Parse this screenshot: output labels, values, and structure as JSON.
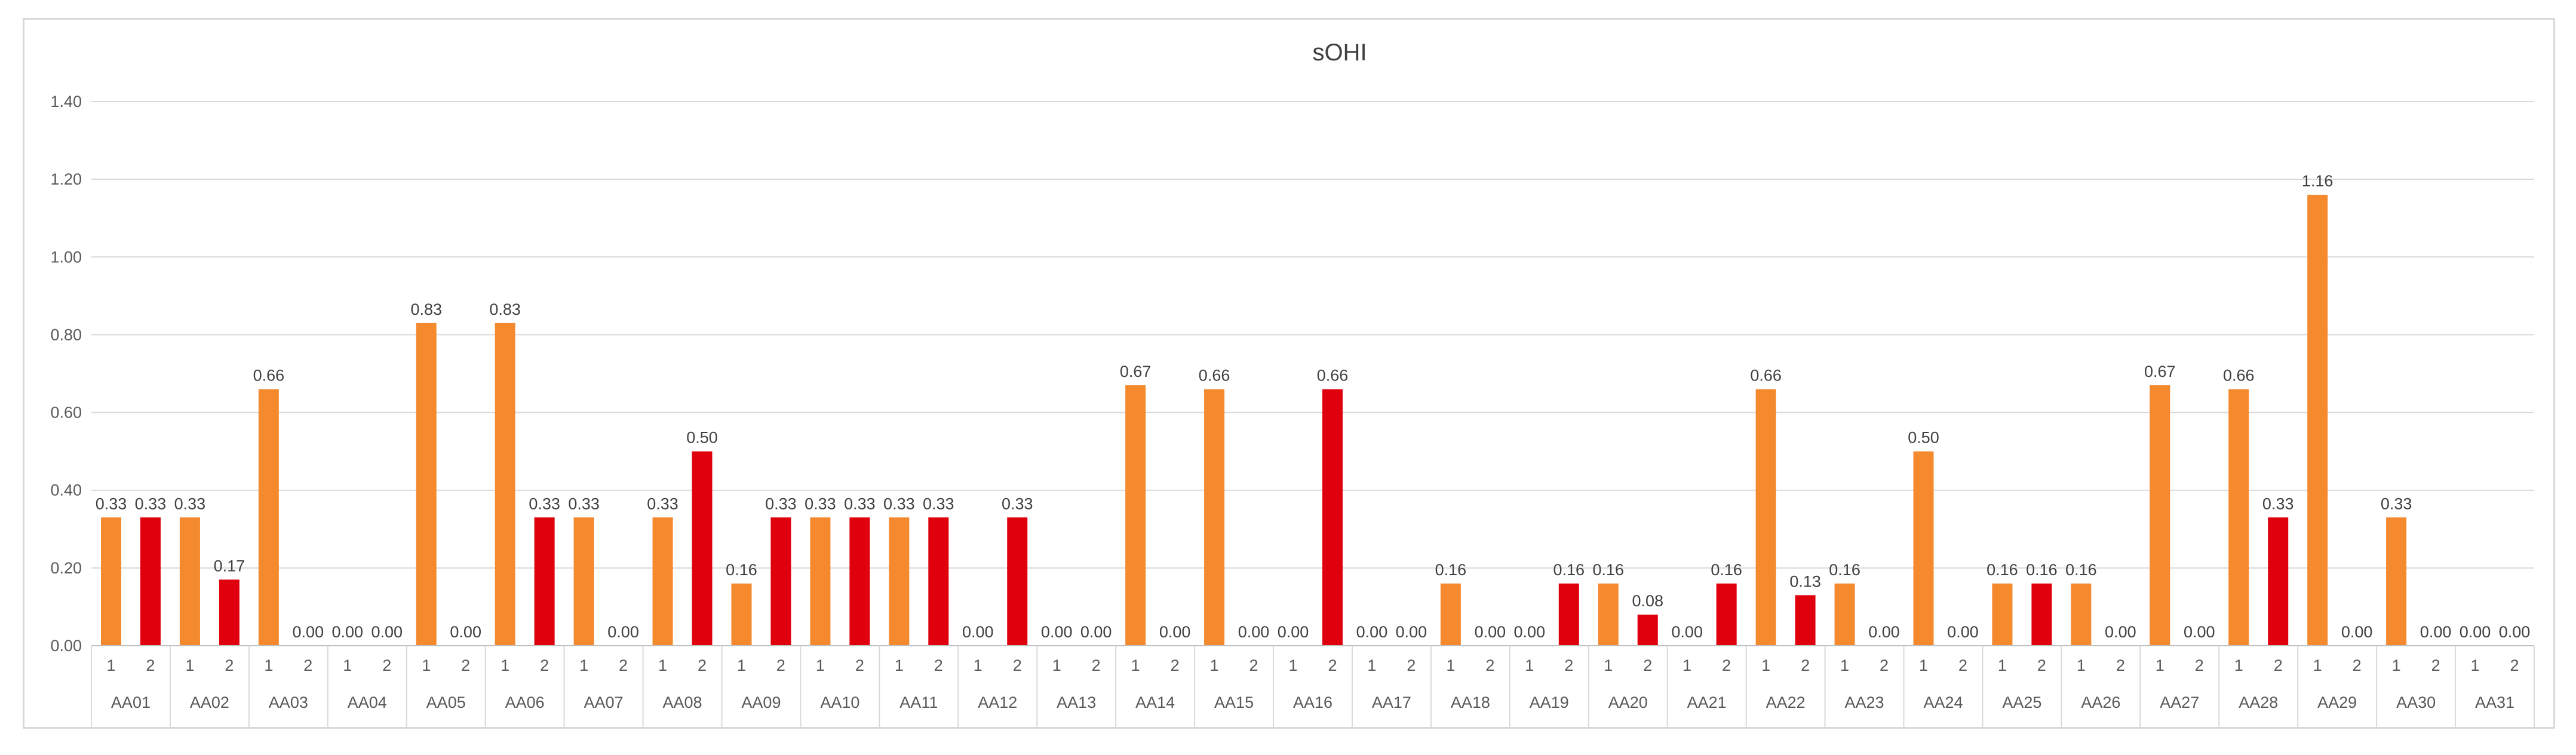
{
  "chart_data": {
    "type": "bar",
    "title": "sOHI",
    "xlabel": "",
    "ylabel": "",
    "ylim": [
      0,
      1.4
    ],
    "y_ticks": [
      "0.00",
      "0.20",
      "0.40",
      "0.60",
      "0.80",
      "1.00",
      "1.20",
      "1.40"
    ],
    "grid": true,
    "legend": "none",
    "groups": [
      "AA01",
      "AA02",
      "AA03",
      "AA04",
      "AA05",
      "AA06",
      "AA07",
      "AA08",
      "AA09",
      "AA10",
      "AA11",
      "AA12",
      "AA13",
      "AA14",
      "AA15",
      "AA16",
      "AA17",
      "AA18",
      "AA19",
      "AA20",
      "AA21",
      "AA22",
      "AA23",
      "AA24",
      "AA25",
      "AA26",
      "AA27",
      "AA28",
      "AA29",
      "AA30",
      "AA31"
    ],
    "subcategories": [
      "1",
      "2"
    ],
    "colors": {
      "1": "#f5892e",
      "2": "#e0000d"
    },
    "values": [
      [
        0.33,
        0.33
      ],
      [
        0.33,
        0.17
      ],
      [
        0.66,
        0.0
      ],
      [
        0.0,
        0.0
      ],
      [
        0.83,
        0.0
      ],
      [
        0.83,
        0.33
      ],
      [
        0.33,
        0.0
      ],
      [
        0.33,
        0.5
      ],
      [
        0.16,
        0.33
      ],
      [
        0.33,
        0.33
      ],
      [
        0.33,
        0.33
      ],
      [
        0.0,
        0.33
      ],
      [
        0.0,
        0.0
      ],
      [
        0.67,
        0.0
      ],
      [
        0.66,
        0.0
      ],
      [
        0.0,
        0.66
      ],
      [
        0.0,
        0.0
      ],
      [
        0.16,
        0.0
      ],
      [
        0.0,
        0.16
      ],
      [
        0.16,
        0.08
      ],
      [
        0.0,
        0.16
      ],
      [
        0.66,
        0.13
      ],
      [
        0.16,
        0.0
      ],
      [
        0.5,
        0.0
      ],
      [
        0.16,
        0.16
      ],
      [
        0.16,
        0.0
      ],
      [
        0.67,
        0.0
      ],
      [
        0.66,
        0.33
      ],
      [
        1.16,
        0.0
      ],
      [
        0.33,
        0.0
      ],
      [
        0.0,
        0.0
      ]
    ],
    "value_labels": [
      [
        "0.33",
        "0.33"
      ],
      [
        "0.33",
        "0.17"
      ],
      [
        "0.66",
        "0.00"
      ],
      [
        "0.00",
        "0.00"
      ],
      [
        "0.83",
        "0.00"
      ],
      [
        "0.83",
        "0.33"
      ],
      [
        "0.33",
        "0.00"
      ],
      [
        "0.33",
        "0.50"
      ],
      [
        "0.16",
        "0.33"
      ],
      [
        "0.33",
        "0.33"
      ],
      [
        "0.33",
        "0.33"
      ],
      [
        "0.00",
        "0.33"
      ],
      [
        "0.00",
        "0.00"
      ],
      [
        "0.67",
        "0.00"
      ],
      [
        "0.66",
        "0.00"
      ],
      [
        "0.00",
        "0.66"
      ],
      [
        "0.00",
        "0.00"
      ],
      [
        "0.16",
        "0.00"
      ],
      [
        "0.00",
        "0.16"
      ],
      [
        "0.16",
        "0.08"
      ],
      [
        "0.00",
        "0.16"
      ],
      [
        "0.66",
        "0.13"
      ],
      [
        "0.16",
        "0.00"
      ],
      [
        "0.50",
        "0.00"
      ],
      [
        "0.16",
        "0.16"
      ],
      [
        "0.16",
        "0.00"
      ],
      [
        "0.67",
        "0.00"
      ],
      [
        "0.66",
        "0.33"
      ],
      [
        "1.16",
        "0.00"
      ],
      [
        "0.33",
        "0.00"
      ],
      [
        "0.00",
        "0.00"
      ]
    ]
  }
}
